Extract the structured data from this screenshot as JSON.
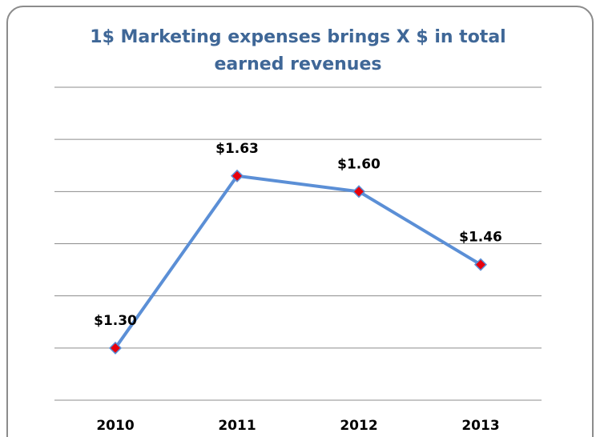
{
  "chart_data": {
    "type": "line",
    "title": "1$ Marketing expenses brings X $ in total earned revenues",
    "categories": [
      "2010",
      "2011",
      "2012",
      "2013"
    ],
    "series": [
      {
        "name": null,
        "color": "#5b8fd6",
        "marker_color": "#e8000b",
        "values": [
          1.3,
          1.63,
          1.6,
          1.46
        ],
        "value_labels": [
          "$1.30",
          "$1.63",
          "$1.60",
          "$1.46"
        ]
      }
    ],
    "ylim": [
      1.2,
      1.8
    ],
    "yticks": [
      1.2,
      1.3,
      1.4,
      1.5,
      1.6,
      1.7,
      1.8
    ],
    "grid": true
  }
}
